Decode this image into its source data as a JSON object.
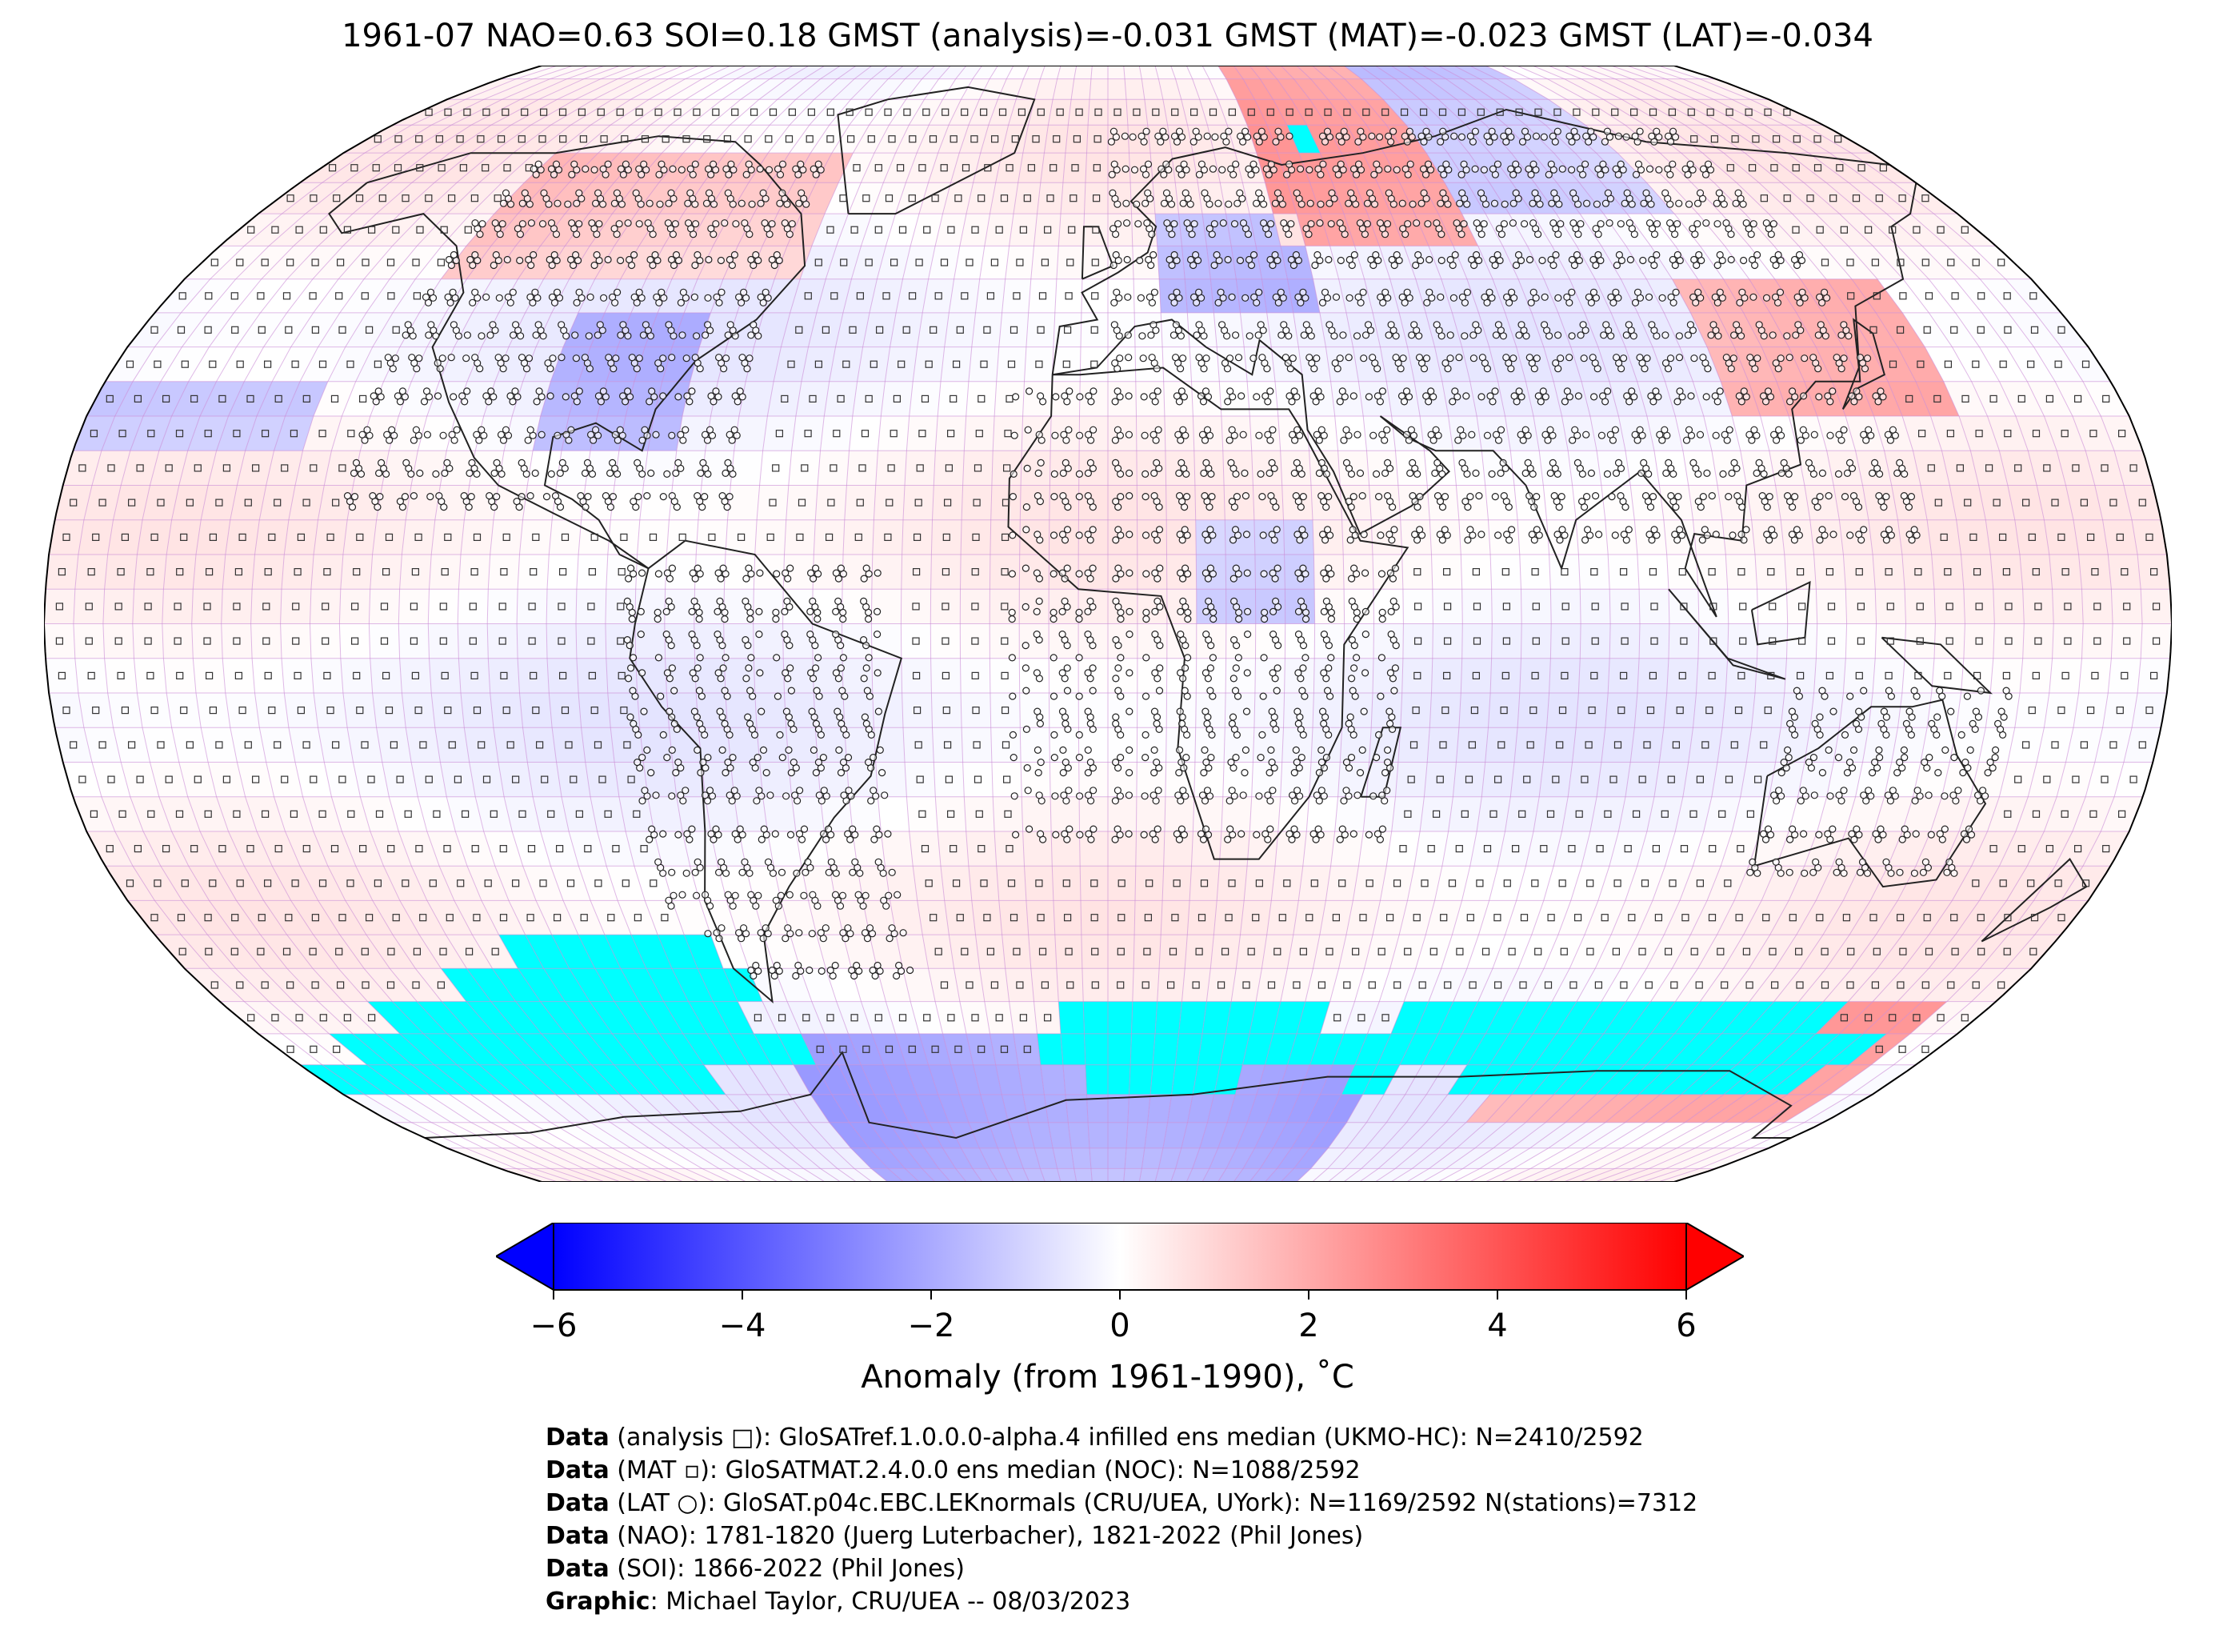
{
  "title": "1961-07 NAO=0.63 SOI=0.18 GMST (analysis)=-0.031 GMST (MAT)=-0.023 GMST (LAT)=-0.034",
  "colorbar": {
    "ticks": [
      "−6",
      "−4",
      "−2",
      "0",
      "2",
      "4",
      "6"
    ],
    "tick_values": [
      -6,
      -4,
      -2,
      0,
      2,
      4,
      6
    ],
    "range": [
      -6,
      6
    ],
    "colors": {
      "min": "#0000ff",
      "mid": "#ffffff",
      "max": "#ff0000"
    },
    "label": "Anomaly (from 1961-1990), ˚C"
  },
  "map": {
    "projection": "Robinson",
    "missing_color": "#00ffff",
    "ocean_missing_regions": [
      "South Atlantic / Southern Ocean",
      "Southern Indian Ocean",
      "Southern Ocean south of Pacific"
    ],
    "features": [
      "coastlines",
      "country borders",
      "station markers",
      "grid cells"
    ]
  },
  "credits": [
    {
      "key": "Data",
      "text": " (analysis □): GloSATref.1.0.0.0-alpha.4 infilled ens median (UKMO-HC): N=2410/2592"
    },
    {
      "key": "Data",
      "text": " (MAT ▫): GloSATMAT.2.4.0.0 ens median (NOC): N=1088/2592"
    },
    {
      "key": "Data",
      "text": " (LAT ○): GloSAT.p04c.EBC.LEKnormals (CRU/UEA, UYork): N=1169/2592 N(stations)=7312"
    },
    {
      "key": "Data",
      "text": " (NAO): 1781-1820 (Juerg Luterbacher), 1821-2022 (Phil Jones)"
    },
    {
      "key": "Data",
      "text": " (SOI): 1866-2022 (Phil Jones)"
    },
    {
      "key": "Graphic",
      "text": ": Michael Taylor, CRU/UEA -- 08/03/2023"
    }
  ]
}
